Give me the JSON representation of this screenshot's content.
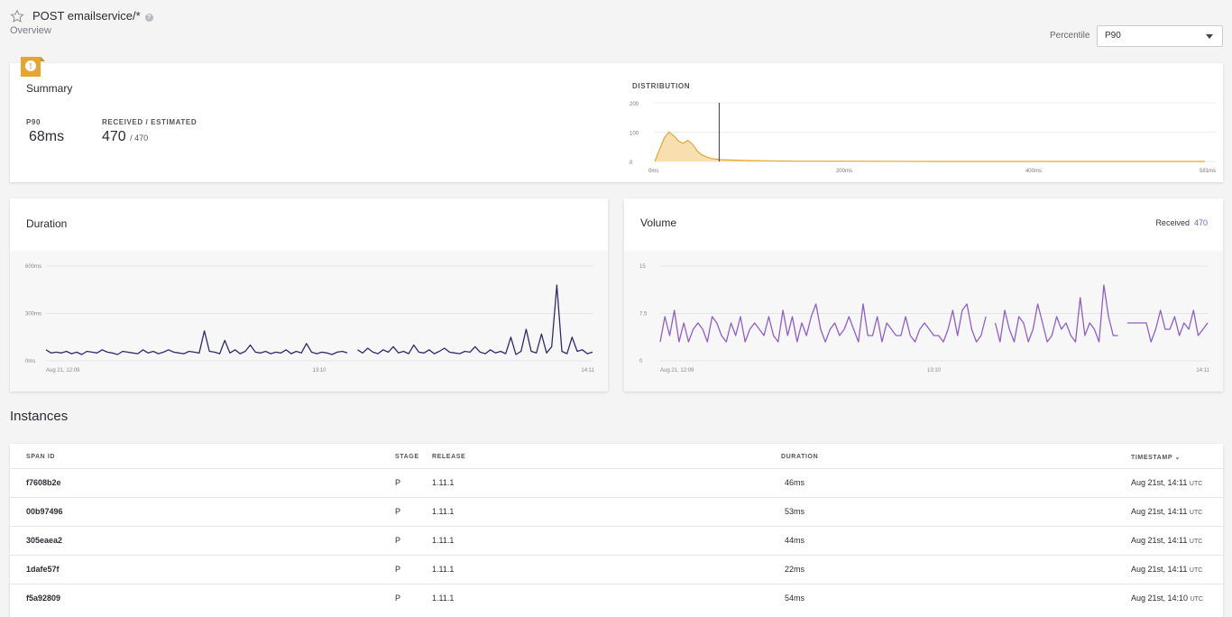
{
  "header": {
    "title": "POST emailservice/*",
    "subtitle": "Overview"
  },
  "percentile": {
    "label": "Percentile",
    "value": "P90"
  },
  "summary": {
    "title": "Summary",
    "p_label": "P90",
    "p_value": "68ms",
    "recv_label": "Received / Estimated",
    "received": "470",
    "estimated": "/ 470",
    "distribution_label": "Distribution"
  },
  "duration": {
    "title": "Duration"
  },
  "volume": {
    "title": "Volume",
    "received_label": "Received",
    "received_value": "470"
  },
  "instances": {
    "title": "Instances",
    "columns": {
      "span_id": "Span ID",
      "stage": "Stage",
      "release": "Release",
      "duration": "Duration",
      "timestamp": "Timestamp"
    },
    "rows": [
      {
        "span_id": "f7608b2e",
        "stage": "P",
        "release": "1.11.1",
        "duration": "46ms",
        "timestamp": "Aug 21st, 14:11",
        "tz": "UTC"
      },
      {
        "span_id": "00b97496",
        "stage": "P",
        "release": "1.11.1",
        "duration": "53ms",
        "timestamp": "Aug 21st, 14:11",
        "tz": "UTC"
      },
      {
        "span_id": "305eaea2",
        "stage": "P",
        "release": "1.11.1",
        "duration": "44ms",
        "timestamp": "Aug 21st, 14:11",
        "tz": "UTC"
      },
      {
        "span_id": "1dafe57f",
        "stage": "P",
        "release": "1.11.1",
        "duration": "22ms",
        "timestamp": "Aug 21st, 14:11",
        "tz": "UTC"
      },
      {
        "span_id": "f5a92809",
        "stage": "P",
        "release": "1.11.1",
        "duration": "54ms",
        "timestamp": "Aug 21st, 14:10",
        "tz": "UTC"
      }
    ]
  },
  "colors": {
    "distribution": "#e6a530",
    "duration_line": "#2e2b6e",
    "volume_line": "#8f5fc9",
    "marker": "#3a3a4a"
  },
  "chart_data": [
    {
      "type": "area",
      "title": "Distribution",
      "x_unit": "ms",
      "xlim": [
        0,
        581
      ],
      "ylim": [
        0,
        200
      ],
      "ytick_labels": [
        "0",
        "100",
        "200"
      ],
      "xtick_labels": [
        "0ms",
        "200ms",
        "400ms",
        "581ms"
      ],
      "x": [
        0,
        5,
        10,
        15,
        20,
        25,
        30,
        35,
        40,
        45,
        50,
        55,
        60,
        65,
        70,
        80,
        90,
        100,
        120,
        150,
        200,
        300,
        400,
        500,
        581
      ],
      "values": [
        0,
        40,
        80,
        100,
        88,
        70,
        62,
        72,
        58,
        35,
        22,
        15,
        10,
        8,
        6,
        5,
        4,
        3,
        2,
        1,
        1,
        0,
        0,
        0,
        0
      ],
      "marker_value": 68
    },
    {
      "type": "line",
      "title": "Duration",
      "y_unit": "ms",
      "ylim": [
        0,
        600
      ],
      "ytick_labels": [
        "0ms",
        "300ms",
        "600ms"
      ],
      "xtick_labels": [
        "Aug 21, 12:09",
        "13:10",
        "14:11"
      ],
      "series": [
        {
          "values": [
            70,
            50,
            55,
            50,
            60,
            45,
            55,
            40,
            60,
            55,
            50,
            70,
            55,
            50,
            40,
            60,
            55,
            50,
            45,
            70,
            50,
            60,
            45,
            55,
            70,
            55,
            50,
            45,
            60,
            55,
            50,
            190,
            60,
            55,
            45,
            130,
            50,
            70,
            45,
            60,
            100,
            55,
            50,
            60,
            45,
            55,
            50,
            70,
            45,
            60,
            50,
            110,
            55,
            45,
            55,
            50,
            40,
            55,
            60,
            50,
            null,
            70,
            50,
            80,
            55,
            45,
            70,
            55,
            90,
            50,
            60,
            45,
            100,
            55,
            50,
            70,
            45,
            60,
            80,
            55,
            50,
            45,
            60,
            55,
            90,
            55,
            45,
            70,
            50,
            60,
            45,
            150,
            40,
            60,
            200,
            60,
            50,
            170,
            50,
            90,
            480,
            60,
            45,
            150,
            60,
            70,
            45,
            55
          ]
        }
      ]
    },
    {
      "type": "line",
      "title": "Volume",
      "ylim": [
        0,
        15
      ],
      "ytick_labels": [
        "0",
        "7.5",
        "15"
      ],
      "xtick_labels": [
        "Aug 21, 12:09",
        "13:10",
        "14:11"
      ],
      "series": [
        {
          "name": "Received",
          "values": [
            3,
            7,
            4,
            8,
            3,
            6,
            3,
            5,
            6,
            5,
            3,
            7,
            6,
            4,
            3,
            6,
            4,
            7,
            3,
            5,
            6,
            5,
            4,
            7,
            4,
            3,
            8,
            4,
            7,
            3,
            6,
            4,
            7,
            9,
            5,
            3,
            5,
            6,
            4,
            5,
            7,
            5,
            3,
            9,
            4,
            4,
            7,
            3,
            6,
            5,
            4,
            4,
            7,
            4,
            3,
            5,
            6,
            5,
            4,
            4,
            3,
            5,
            8,
            4,
            8,
            9,
            5,
            3,
            4,
            7,
            null,
            6,
            3,
            8,
            5,
            3,
            7,
            6,
            3,
            5,
            9,
            6,
            3,
            4,
            7,
            5,
            6,
            4,
            3,
            10,
            4,
            6,
            5,
            3,
            12,
            7,
            4,
            4,
            null,
            6,
            6,
            6,
            6,
            6,
            3,
            5,
            8,
            5,
            5,
            7,
            4,
            6,
            5,
            8,
            4,
            5,
            6
          ]
        }
      ]
    }
  ]
}
